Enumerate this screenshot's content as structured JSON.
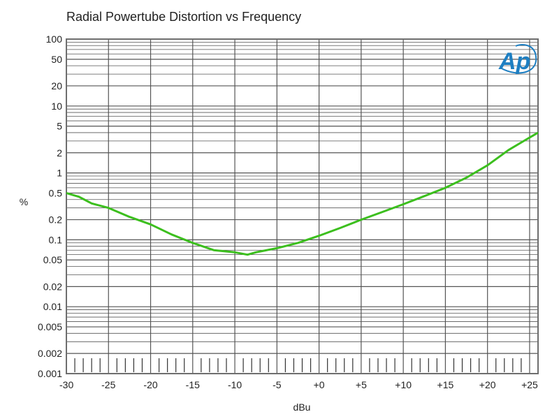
{
  "colors": {
    "curve": "#3cbf1e",
    "grid": "#555555",
    "border": "#6e6e6e",
    "logo": "#1e7fc2",
    "text": "#222222"
  },
  "logo": {
    "icon": "ap-logo-icon",
    "text": "Ap"
  },
  "chart_data": {
    "type": "line",
    "title": "Radial Powertube Distortion vs Frequency",
    "xlabel": "dBu",
    "ylabel": "%",
    "xlim": [
      -30,
      26
    ],
    "ylim": [
      0.001,
      100
    ],
    "yscale": "log",
    "grid": true,
    "x_ticks": [
      -30,
      -25,
      -20,
      -15,
      -10,
      -5,
      0,
      5,
      10,
      15,
      20,
      25
    ],
    "x_tick_labels": [
      "-30",
      "-25",
      "-20",
      "-15",
      "-10",
      "-5",
      "+0",
      "+5",
      "+10",
      "+15",
      "+20",
      "+25"
    ],
    "y_ticks": [
      100,
      50,
      20,
      10,
      5,
      2,
      1,
      0.5,
      0.2,
      0.1,
      0.05,
      0.02,
      0.01,
      0.005,
      0.002,
      0.001
    ],
    "y_tick_labels": [
      "100",
      "50",
      "20",
      "10",
      "5",
      "2",
      "1",
      "0.5",
      "0.2",
      "0.1",
      "0.05",
      "0.02",
      "0.01",
      "0.005",
      "0.002",
      "0.001"
    ],
    "series": [
      {
        "x": [
          -30,
          -28.5,
          -27,
          -25,
          -22.5,
          -20,
          -17.5,
          -15,
          -12.5,
          -10,
          -8.5,
          -7.5,
          -5,
          -2.5,
          0,
          2.5,
          5,
          7.5,
          10,
          12.5,
          15,
          17.5,
          20,
          22.5,
          24.5,
          26
        ],
        "y": [
          0.5,
          0.44,
          0.35,
          0.3,
          0.22,
          0.17,
          0.12,
          0.09,
          0.07,
          0.065,
          0.06,
          0.065,
          0.075,
          0.09,
          0.115,
          0.15,
          0.2,
          0.26,
          0.34,
          0.45,
          0.6,
          0.85,
          1.3,
          2.2,
          3.1,
          4.0
        ]
      }
    ]
  }
}
